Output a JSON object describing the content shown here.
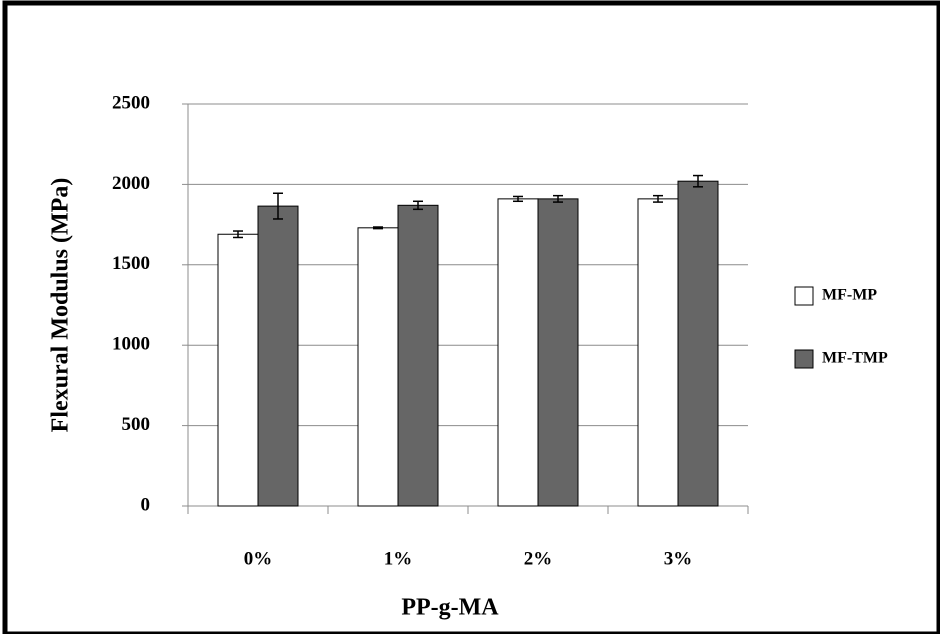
{
  "chart_data": {
    "type": "bar",
    "x_label": "PP-g-MA",
    "y_label": "Flexural  Modulus (MPa)",
    "categories": [
      "0%",
      "1%",
      "2%",
      "3%"
    ],
    "series": [
      {
        "name": "MF-MP",
        "color": "#ffffff",
        "values": [
          1690,
          1730,
          1910,
          1910
        ],
        "errors": [
          20,
          5,
          15,
          20
        ]
      },
      {
        "name": "MF-TMP",
        "color": "#666666",
        "values": [
          1865,
          1870,
          1910,
          2020
        ],
        "errors": [
          80,
          25,
          20,
          35
        ]
      }
    ],
    "ylim": [
      0,
      2500
    ],
    "yticks": [
      0,
      500,
      1000,
      1500,
      2000,
      2500
    ],
    "grid": true,
    "legend": "right"
  }
}
